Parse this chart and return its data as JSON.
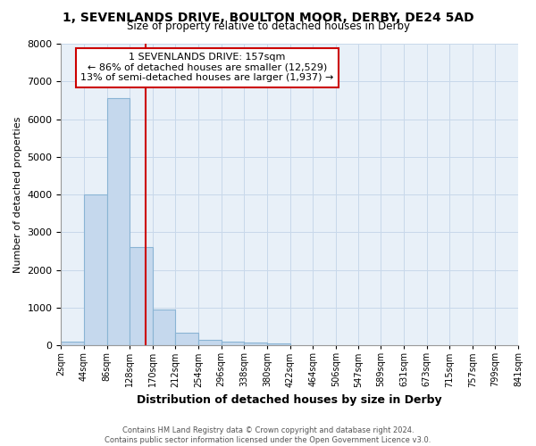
{
  "title": "1, SEVENLANDS DRIVE, BOULTON MOOR, DERBY, DE24 5AD",
  "subtitle": "Size of property relative to detached houses in Derby",
  "xlabel": "Distribution of detached houses by size in Derby",
  "ylabel": "Number of detached properties",
  "bar_color": "#c5d8ed",
  "bar_edge_color": "#8ab4d4",
  "bin_edges": [
    2,
    44,
    86,
    128,
    170,
    212,
    254,
    296,
    338,
    380,
    422,
    464,
    506,
    547,
    589,
    631,
    673,
    715,
    757,
    799,
    841
  ],
  "bar_heights": [
    100,
    4000,
    6550,
    2600,
    950,
    330,
    150,
    100,
    80,
    50,
    0,
    0,
    0,
    0,
    0,
    0,
    0,
    0,
    0,
    0
  ],
  "tick_labels": [
    "2sqm",
    "44sqm",
    "86sqm",
    "128sqm",
    "170sqm",
    "212sqm",
    "254sqm",
    "296sqm",
    "338sqm",
    "380sqm",
    "422sqm",
    "464sqm",
    "506sqm",
    "547sqm",
    "589sqm",
    "631sqm",
    "673sqm",
    "715sqm",
    "757sqm",
    "799sqm",
    "841sqm"
  ],
  "vline_x": 157,
  "vline_color": "#cc0000",
  "annotation_line1": "1 SEVENLANDS DRIVE: 157sqm",
  "annotation_line2": "← 86% of detached houses are smaller (12,529)",
  "annotation_line3": "13% of semi-detached houses are larger (1,937) →",
  "annotation_box_color": "#cc0000",
  "ylim": [
    0,
    8000
  ],
  "yticks": [
    0,
    1000,
    2000,
    3000,
    4000,
    5000,
    6000,
    7000,
    8000
  ],
  "grid_color": "#c8d8ea",
  "bg_color": "#e8f0f8",
  "footer_line1": "Contains HM Land Registry data © Crown copyright and database right 2024.",
  "footer_line2": "Contains public sector information licensed under the Open Government Licence v3.0."
}
